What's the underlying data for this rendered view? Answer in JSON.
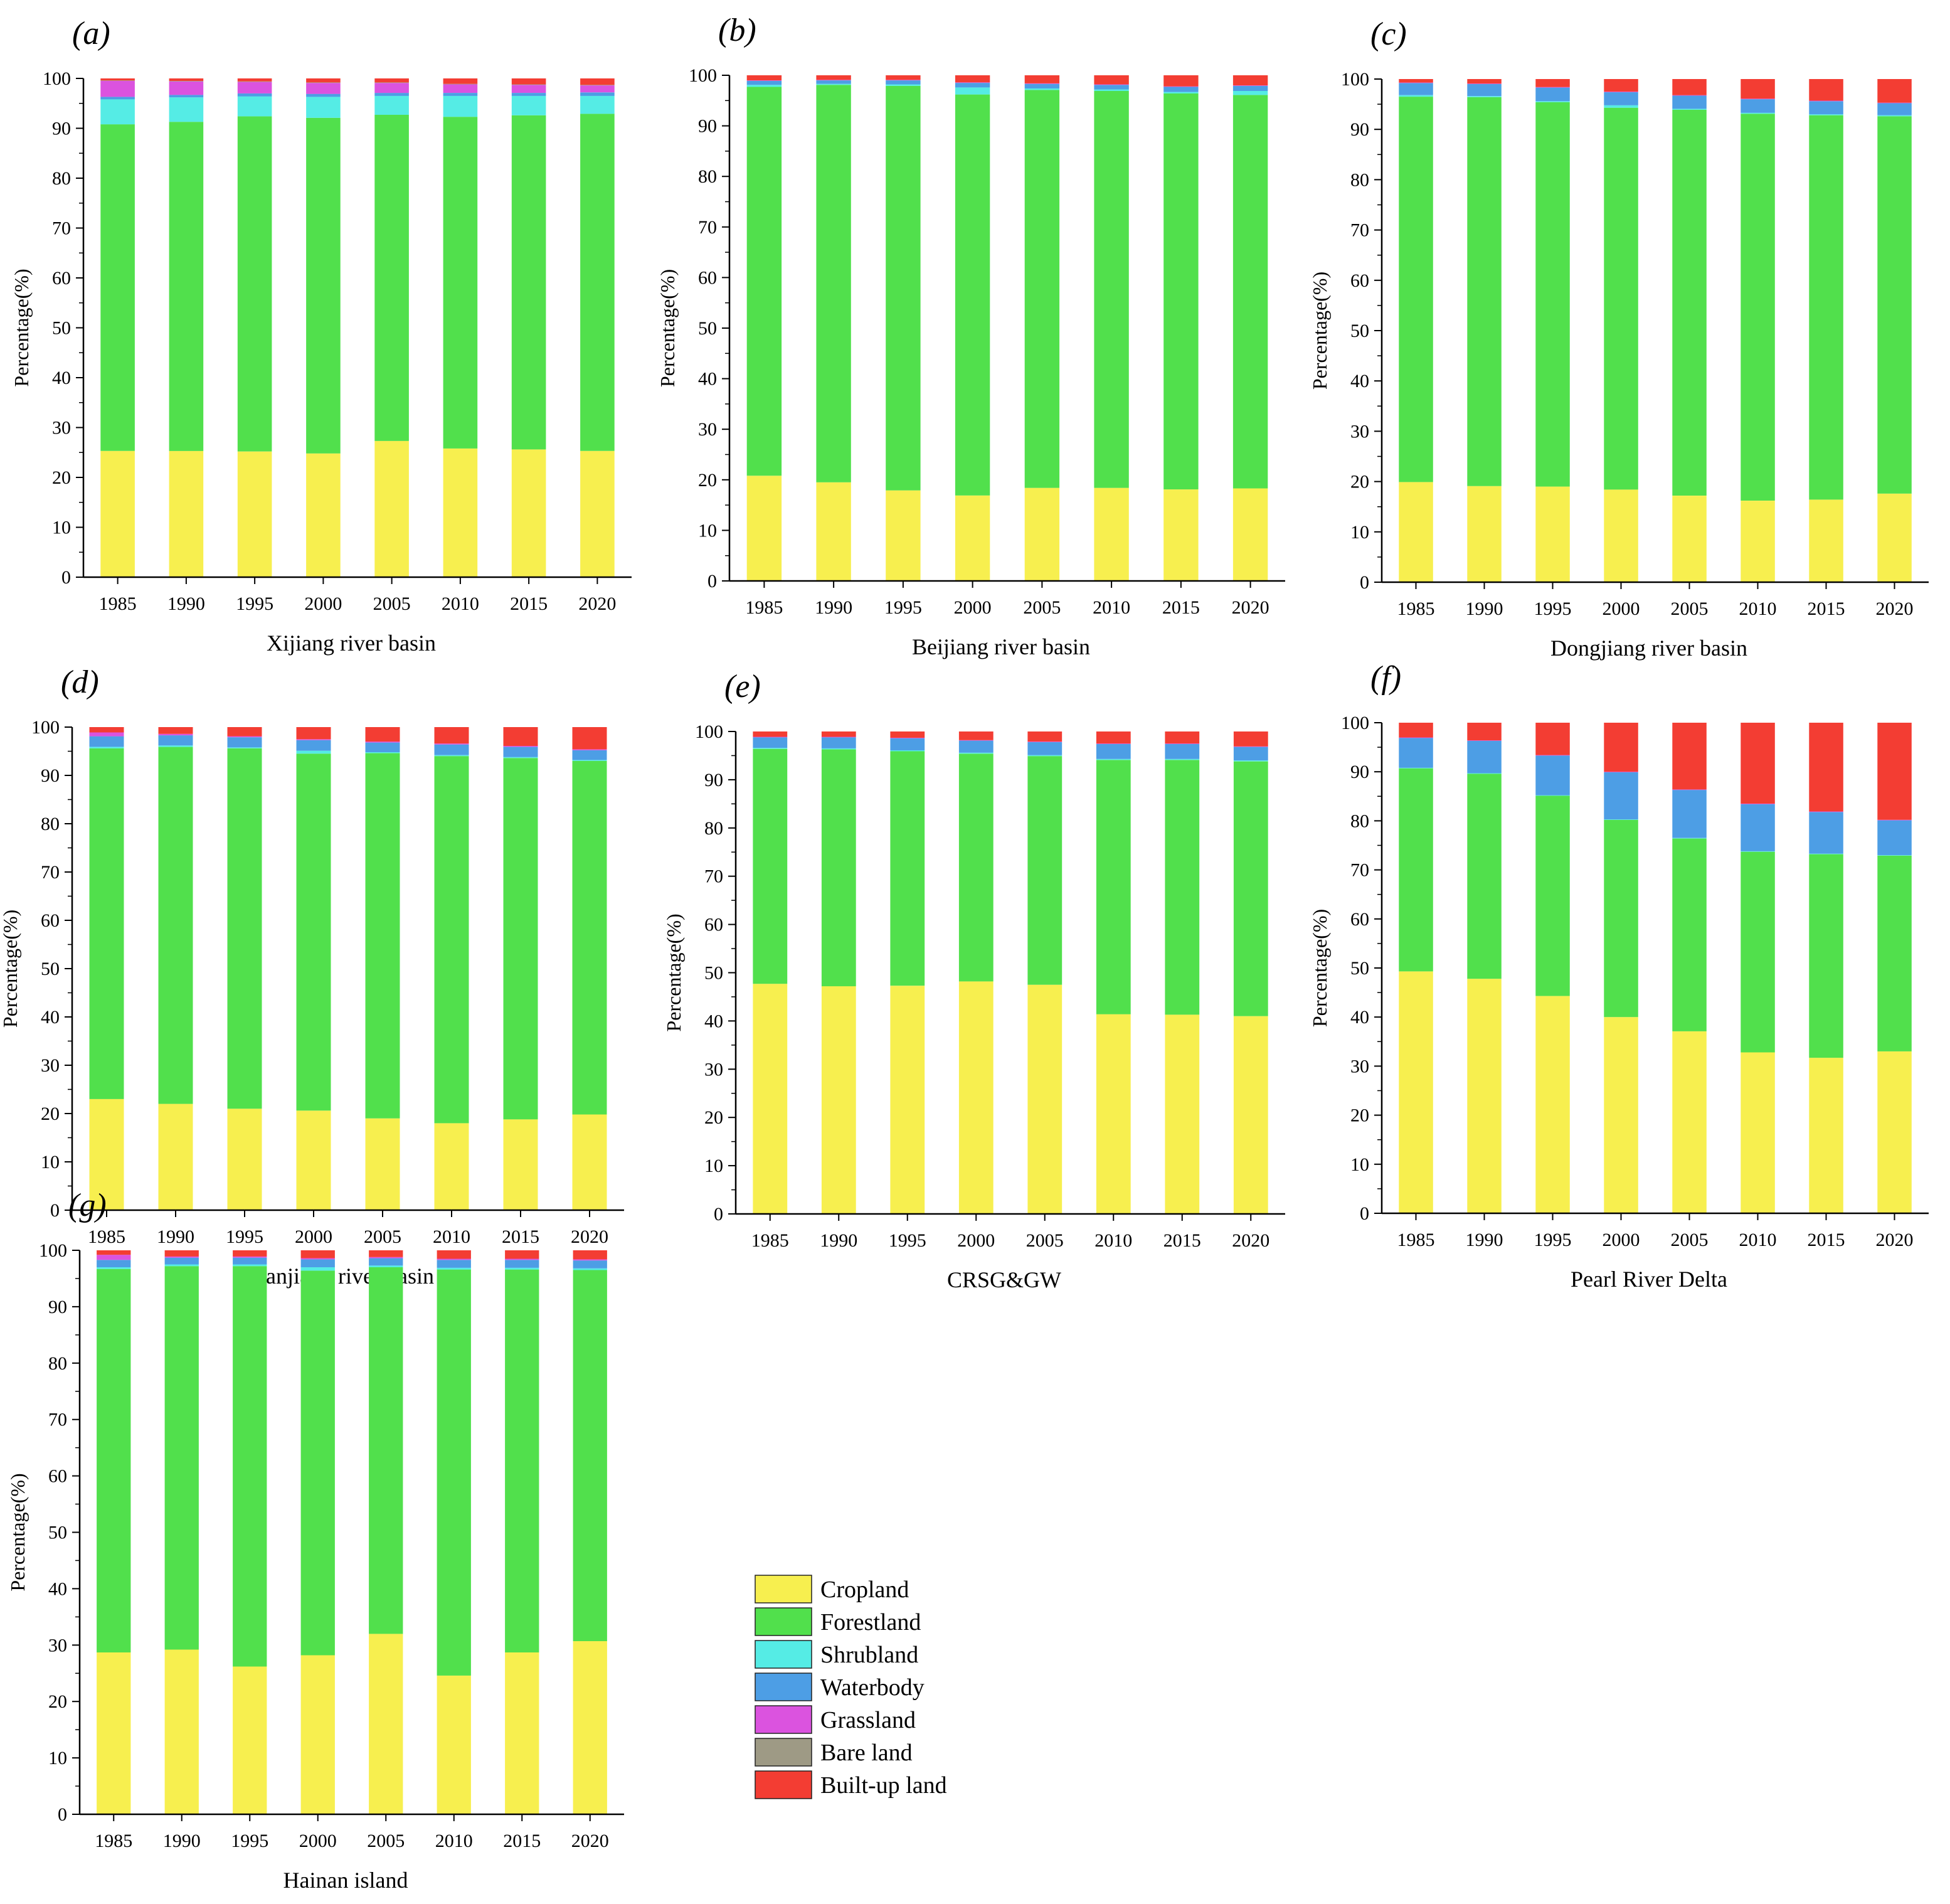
{
  "figure": {
    "legend_title": "",
    "categories": [
      "Cropland",
      "Forestland",
      "Shrubland",
      "Waterbody",
      "Grassland",
      "Bare land",
      "Built-up land"
    ],
    "colors": [
      "#F7EF4F",
      "#51E04C",
      "#55ECE5",
      "#4D9EE5",
      "#DB53DF",
      "#9E9A85",
      "#F33D33"
    ]
  },
  "chart_data": [
    {
      "type": "bar",
      "stacked": true,
      "panel_label": "(a)",
      "title": "Xijiang river basin",
      "xlabel": "Xijiang river basin",
      "ylabel": "Percentage(%)",
      "ylim": [
        0,
        100
      ],
      "yticks": [
        "0",
        "10",
        "20",
        "30",
        "40",
        "50",
        "60",
        "70",
        "80",
        "90",
        "100"
      ],
      "categories": [
        "1985",
        "1990",
        "1995",
        "2000",
        "2005",
        "2010",
        "2015",
        "2020"
      ],
      "series": [
        {
          "name": "Cropland",
          "values": [
            25.3,
            25.3,
            25.2,
            24.8,
            27.3,
            25.8,
            25.6,
            25.3
          ]
        },
        {
          "name": "Forestland",
          "values": [
            65.5,
            66.0,
            67.2,
            67.3,
            65.4,
            66.5,
            67.0,
            67.6
          ]
        },
        {
          "name": "Shrubland",
          "values": [
            5.0,
            4.9,
            4.0,
            4.2,
            3.8,
            4.2,
            3.9,
            3.6
          ]
        },
        {
          "name": "Waterbody",
          "values": [
            0.5,
            0.5,
            0.6,
            0.6,
            0.6,
            0.6,
            0.6,
            0.7
          ]
        },
        {
          "name": "Grassland",
          "values": [
            3.2,
            2.7,
            2.3,
            2.2,
            2.0,
            1.7,
            1.6,
            1.4
          ]
        },
        {
          "name": "Bare land",
          "values": [
            0.1,
            0.1,
            0.1,
            0.1,
            0.1,
            0.1,
            0.1,
            0.1
          ]
        },
        {
          "name": "Built-up land",
          "values": [
            0.4,
            0.5,
            0.6,
            0.8,
            0.8,
            1.1,
            1.2,
            1.3
          ]
        }
      ]
    },
    {
      "type": "bar",
      "stacked": true,
      "panel_label": "(b)",
      "title": "Beijiang river basin",
      "xlabel": "Beijiang river basin",
      "ylabel": "Percentage(%)",
      "ylim": [
        0,
        100
      ],
      "yticks": [
        "0",
        "10",
        "20",
        "30",
        "40",
        "50",
        "60",
        "70",
        "80",
        "90",
        "100"
      ],
      "categories": [
        "1985",
        "1990",
        "1995",
        "2000",
        "2005",
        "2010",
        "2015",
        "2020"
      ],
      "series": [
        {
          "name": "Cropland",
          "values": [
            20.8,
            19.5,
            17.9,
            16.9,
            18.4,
            18.4,
            18.1,
            18.3
          ]
        },
        {
          "name": "Forestland",
          "values": [
            76.9,
            78.6,
            80.0,
            79.3,
            78.7,
            78.5,
            78.3,
            77.8
          ]
        },
        {
          "name": "Shrubland",
          "values": [
            0.4,
            0.2,
            0.3,
            1.4,
            0.3,
            0.3,
            0.3,
            0.8
          ]
        },
        {
          "name": "Waterbody",
          "values": [
            0.8,
            0.7,
            0.8,
            0.9,
            0.9,
            0.9,
            1.0,
            1.0
          ]
        },
        {
          "name": "Grassland",
          "values": [
            0.1,
            0.1,
            0.1,
            0.1,
            0.1,
            0.1,
            0.1,
            0.1
          ]
        },
        {
          "name": "Bare land",
          "values": [
            0.0,
            0.0,
            0.0,
            0.0,
            0.0,
            0.0,
            0.0,
            0.0
          ]
        },
        {
          "name": "Built-up land",
          "values": [
            1.0,
            0.9,
            0.9,
            1.4,
            1.6,
            1.8,
            2.2,
            2.0
          ]
        }
      ]
    },
    {
      "type": "bar",
      "stacked": true,
      "panel_label": "(c)",
      "title": "Dongjiang river basin",
      "xlabel": "Dongjiang river basin",
      "ylabel": "Percentage(%)",
      "ylim": [
        0,
        100
      ],
      "yticks": [
        "0",
        "10",
        "20",
        "30",
        "40",
        "50",
        "60",
        "70",
        "80",
        "90",
        "100"
      ],
      "categories": [
        "1985",
        "1990",
        "1995",
        "2000",
        "2005",
        "2010",
        "2015",
        "2020"
      ],
      "series": [
        {
          "name": "Cropland",
          "values": [
            19.9,
            19.1,
            19.0,
            18.4,
            17.2,
            16.2,
            16.4,
            17.6
          ]
        },
        {
          "name": "Forestland",
          "values": [
            76.6,
            77.3,
            76.4,
            75.9,
            76.7,
            76.9,
            76.4,
            75.0
          ]
        },
        {
          "name": "Shrubland",
          "values": [
            0.3,
            0.2,
            0.2,
            0.5,
            0.2,
            0.2,
            0.2,
            0.2
          ]
        },
        {
          "name": "Waterbody",
          "values": [
            2.4,
            2.4,
            2.7,
            2.6,
            2.6,
            2.7,
            2.6,
            2.4
          ]
        },
        {
          "name": "Grassland",
          "values": [
            0.1,
            0.1,
            0.1,
            0.1,
            0.1,
            0.1,
            0.1,
            0.1
          ]
        },
        {
          "name": "Bare land",
          "values": [
            0.0,
            0.0,
            0.0,
            0.0,
            0.0,
            0.0,
            0.0,
            0.0
          ]
        },
        {
          "name": "Built-up land",
          "values": [
            0.7,
            0.9,
            1.6,
            2.5,
            3.2,
            3.9,
            4.3,
            4.7
          ]
        }
      ]
    },
    {
      "type": "bar",
      "stacked": true,
      "panel_label": "(d)",
      "title": "Hanjiang river basin",
      "xlabel": "Hanjiang river basin",
      "ylabel": "Percentage(%)",
      "ylim": [
        0,
        100
      ],
      "yticks": [
        "0",
        "10",
        "20",
        "30",
        "40",
        "50",
        "60",
        "70",
        "80",
        "90",
        "100"
      ],
      "categories": [
        "1985",
        "1990",
        "1995",
        "2000",
        "2005",
        "2010",
        "2015",
        "2020"
      ],
      "series": [
        {
          "name": "Cropland",
          "values": [
            23.0,
            22.0,
            21.0,
            20.6,
            19.0,
            18.0,
            18.8,
            19.8
          ]
        },
        {
          "name": "Forestland",
          "values": [
            72.6,
            73.9,
            74.6,
            73.9,
            75.6,
            76.0,
            74.8,
            73.2
          ]
        },
        {
          "name": "Shrubland",
          "values": [
            0.3,
            0.3,
            0.2,
            0.6,
            0.2,
            0.2,
            0.2,
            0.2
          ]
        },
        {
          "name": "Waterbody",
          "values": [
            2.2,
            2.1,
            2.1,
            2.2,
            2.0,
            2.2,
            2.1,
            2.0
          ]
        },
        {
          "name": "Grassland",
          "values": [
            0.8,
            0.3,
            0.2,
            0.2,
            0.2,
            0.2,
            0.2,
            0.2
          ]
        },
        {
          "name": "Bare land",
          "values": [
            0.0,
            0.0,
            0.0,
            0.0,
            0.0,
            0.0,
            0.0,
            0.0
          ]
        },
        {
          "name": "Built-up land",
          "values": [
            1.1,
            1.4,
            1.9,
            2.5,
            3.0,
            3.4,
            3.9,
            4.6
          ]
        }
      ]
    },
    {
      "type": "bar",
      "stacked": true,
      "panel_label": "(e)",
      "title": "CRSG&GW",
      "xlabel": "CRSG&GW",
      "ylabel": "Percentage(%)",
      "ylim": [
        0,
        100
      ],
      "yticks": [
        "0",
        "10",
        "20",
        "30",
        "40",
        "50",
        "60",
        "70",
        "80",
        "90",
        "100"
      ],
      "categories": [
        "1985",
        "1990",
        "1995",
        "2000",
        "2005",
        "2010",
        "2015",
        "2020"
      ],
      "series": [
        {
          "name": "Cropland",
          "values": [
            47.7,
            47.2,
            47.3,
            48.2,
            47.5,
            41.4,
            41.3,
            41.0
          ]
        },
        {
          "name": "Forestland",
          "values": [
            48.7,
            49.1,
            48.6,
            47.2,
            47.4,
            52.7,
            52.8,
            52.8
          ]
        },
        {
          "name": "Shrubland",
          "values": [
            0.2,
            0.2,
            0.2,
            0.2,
            0.2,
            0.2,
            0.2,
            0.2
          ]
        },
        {
          "name": "Waterbody",
          "values": [
            2.2,
            2.3,
            2.5,
            2.5,
            2.7,
            3.1,
            3.1,
            2.8
          ]
        },
        {
          "name": "Grassland",
          "values": [
            0.1,
            0.1,
            0.1,
            0.1,
            0.1,
            0.1,
            0.1,
            0.1
          ]
        },
        {
          "name": "Bare land",
          "values": [
            0.0,
            0.0,
            0.0,
            0.0,
            0.0,
            0.0,
            0.0,
            0.0
          ]
        },
        {
          "name": "Built-up land",
          "values": [
            1.1,
            1.1,
            1.3,
            1.8,
            2.1,
            2.5,
            2.5,
            3.1
          ]
        }
      ]
    },
    {
      "type": "bar",
      "stacked": true,
      "panel_label": "(f)",
      "title": "Pearl River Delta",
      "xlabel": "Pearl River Delta",
      "ylabel": "Percentage(%)",
      "ylim": [
        0,
        100
      ],
      "yticks": [
        "0",
        "10",
        "20",
        "30",
        "40",
        "50",
        "60",
        "70",
        "80",
        "90",
        "100"
      ],
      "categories": [
        "1985",
        "1990",
        "1995",
        "2000",
        "2005",
        "2010",
        "2015",
        "2020"
      ],
      "series": [
        {
          "name": "Cropland",
          "values": [
            49.3,
            47.8,
            44.3,
            40.0,
            37.1,
            32.8,
            31.7,
            33.0
          ]
        },
        {
          "name": "Forestland",
          "values": [
            41.4,
            41.8,
            40.8,
            40.2,
            39.3,
            40.9,
            41.5,
            39.9
          ]
        },
        {
          "name": "Shrubland",
          "values": [
            0.1,
            0.1,
            0.1,
            0.1,
            0.1,
            0.1,
            0.1,
            0.1
          ]
        },
        {
          "name": "Waterbody",
          "values": [
            6.1,
            6.6,
            8.1,
            9.6,
            9.8,
            9.6,
            8.5,
            7.1
          ]
        },
        {
          "name": "Grassland",
          "values": [
            0.1,
            0.1,
            0.1,
            0.1,
            0.1,
            0.1,
            0.1,
            0.1
          ]
        },
        {
          "name": "Bare land",
          "values": [
            0.0,
            0.0,
            0.0,
            0.0,
            0.0,
            0.0,
            0.0,
            0.0
          ]
        },
        {
          "name": "Built-up land",
          "values": [
            3.0,
            3.6,
            6.6,
            10.0,
            13.6,
            16.5,
            18.1,
            19.8
          ]
        }
      ]
    },
    {
      "type": "bar",
      "stacked": true,
      "panel_label": "(g)",
      "title": "Hainan island",
      "xlabel": "Hainan island",
      "ylabel": "Percentage(%)",
      "ylim": [
        0,
        100
      ],
      "yticks": [
        "0",
        "10",
        "20",
        "30",
        "40",
        "50",
        "60",
        "70",
        "80",
        "90",
        "100"
      ],
      "categories": [
        "1985",
        "1990",
        "1995",
        "2000",
        "2005",
        "2010",
        "2015",
        "2020"
      ],
      "series": [
        {
          "name": "Cropland",
          "values": [
            28.7,
            29.2,
            26.2,
            28.2,
            32.0,
            24.6,
            28.7,
            30.7
          ]
        },
        {
          "name": "Forestland",
          "values": [
            68.0,
            68.0,
            71.0,
            68.2,
            65.0,
            72.0,
            67.9,
            65.8
          ]
        },
        {
          "name": "Shrubland",
          "values": [
            0.3,
            0.3,
            0.3,
            0.6,
            0.3,
            0.3,
            0.3,
            0.3
          ]
        },
        {
          "name": "Waterbody",
          "values": [
            1.3,
            1.2,
            1.2,
            1.4,
            1.3,
            1.4,
            1.4,
            1.4
          ]
        },
        {
          "name": "Grassland",
          "values": [
            0.9,
            0.2,
            0.2,
            0.2,
            0.2,
            0.2,
            0.2,
            0.2
          ]
        },
        {
          "name": "Bare land",
          "values": [
            0.0,
            0.0,
            0.0,
            0.0,
            0.0,
            0.0,
            0.0,
            0.0
          ]
        },
        {
          "name": "Built-up land",
          "values": [
            0.8,
            1.1,
            1.1,
            1.4,
            1.2,
            1.5,
            1.5,
            1.6
          ]
        }
      ]
    }
  ]
}
